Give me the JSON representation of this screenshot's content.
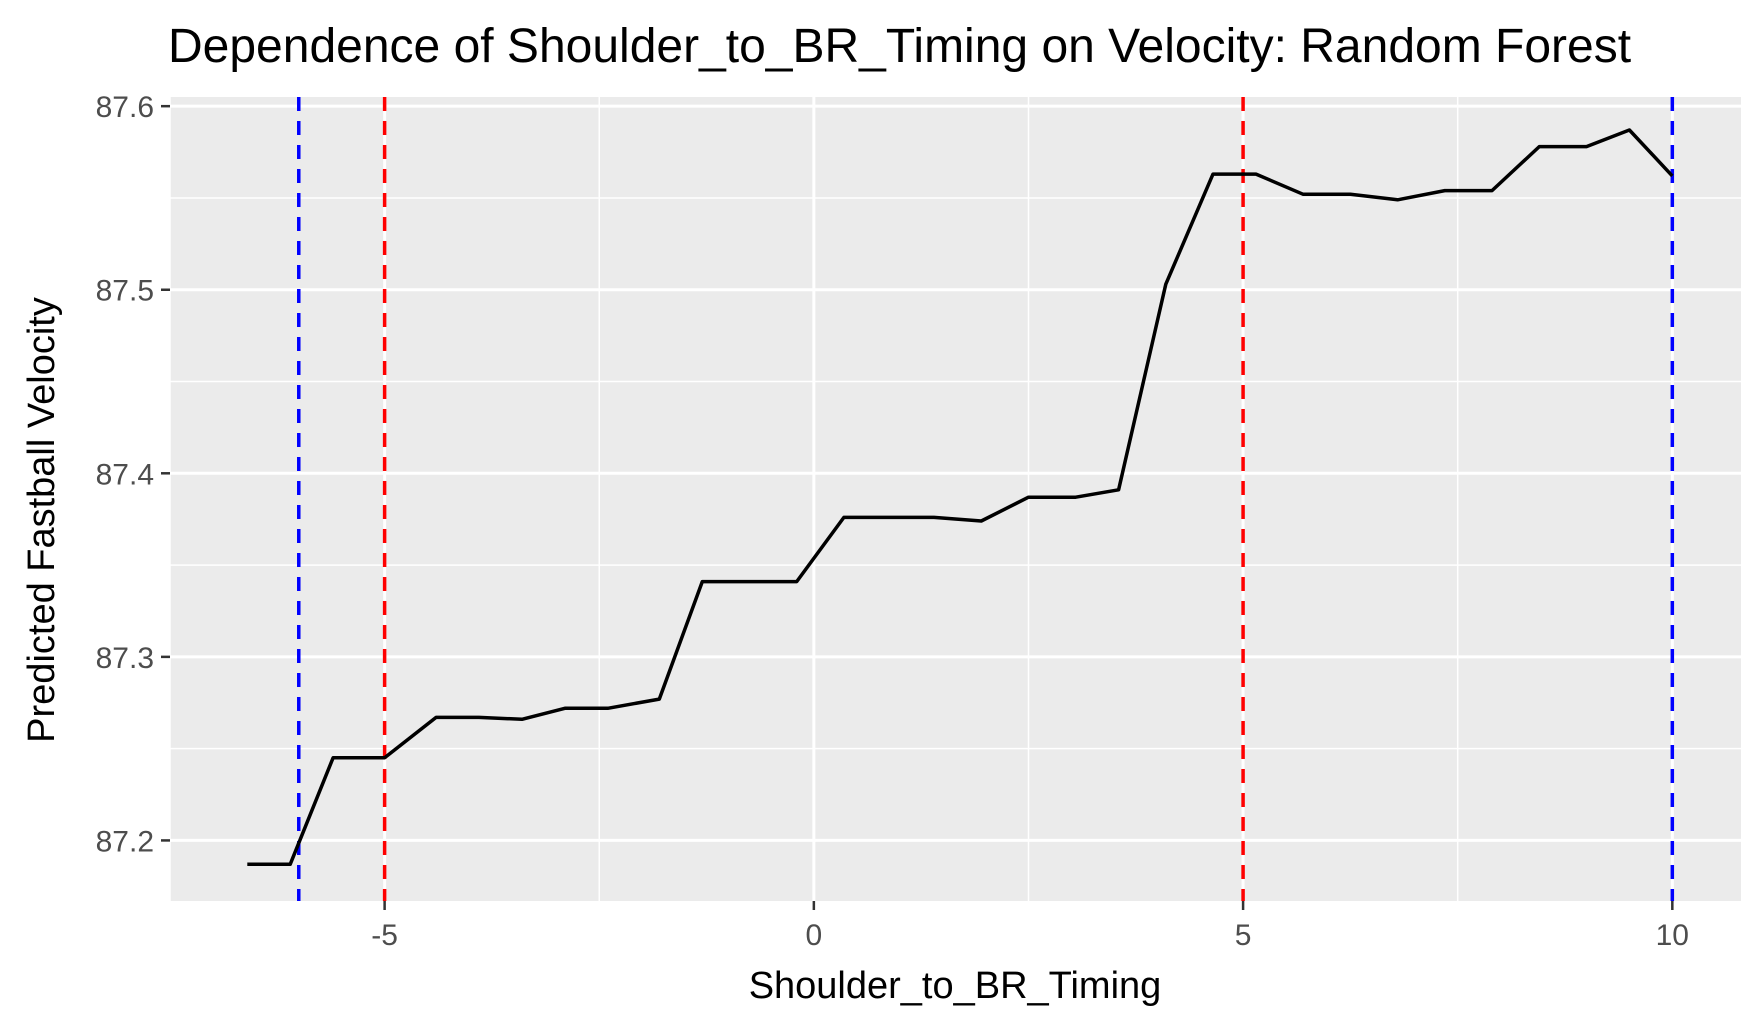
{
  "chart_data": {
    "type": "line",
    "title": "Dependence of Shoulder_to_BR_Timing on Velocity: Random Forest",
    "xlabel": "Shoulder_to_BR_Timing",
    "ylabel": "Predicted Fastball Velocity",
    "xlim": [
      -7.5,
      10.8
    ],
    "ylim": [
      87.167,
      87.605
    ],
    "x_ticks": [
      -5,
      0,
      5,
      10
    ],
    "x_tick_labels": [
      "-5",
      "0",
      "5",
      "10"
    ],
    "y_ticks": [
      87.2,
      87.3,
      87.4,
      87.5,
      87.6
    ],
    "y_tick_labels": [
      "87.2",
      "87.3",
      "87.4",
      "87.5",
      "87.6"
    ],
    "grid": true,
    "legend": "none",
    "series": [
      {
        "color": "#000000",
        "x": [
          -6.6,
          -6.1,
          -5.6,
          -5.0,
          -4.4,
          -3.9,
          -3.4,
          -2.9,
          -2.4,
          -1.8,
          -1.3,
          -0.7,
          -0.2,
          0.35,
          0.9,
          1.4,
          1.95,
          2.5,
          3.05,
          3.55,
          4.1,
          4.65,
          5.15,
          5.7,
          6.25,
          6.8,
          7.35,
          7.9,
          8.45,
          9.0,
          9.5,
          10.0
        ],
        "y": [
          87.187,
          87.187,
          87.245,
          87.245,
          87.267,
          87.267,
          87.266,
          87.272,
          87.272,
          87.277,
          87.341,
          87.341,
          87.341,
          87.376,
          87.376,
          87.376,
          87.374,
          87.387,
          87.387,
          87.391,
          87.503,
          87.563,
          87.563,
          87.552,
          87.552,
          87.549,
          87.554,
          87.554,
          87.578,
          87.578,
          87.587,
          87.562
        ]
      }
    ],
    "vlines": [
      {
        "x": -6.0,
        "color": "#0000ff",
        "style": "dashed"
      },
      {
        "x": 10.0,
        "color": "#0000ff",
        "style": "dashed"
      },
      {
        "x": -5.0,
        "color": "#ff0000",
        "style": "dashed"
      },
      {
        "x": 5.0,
        "color": "#ff0000",
        "style": "dashed"
      }
    ],
    "panel_background": "#ebebeb",
    "grid_color": "#ffffff"
  }
}
